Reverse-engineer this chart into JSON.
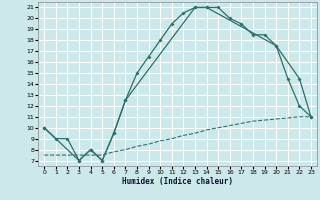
{
  "xlabel": "Humidex (Indice chaleur)",
  "bg_color": "#cce8ea",
  "grid_color": "#b0d8dc",
  "line_color": "#2d7068",
  "xlim": [
    -0.5,
    23.5
  ],
  "ylim": [
    6.5,
    21.5
  ],
  "xticks": [
    0,
    1,
    2,
    3,
    4,
    5,
    6,
    7,
    8,
    9,
    10,
    11,
    12,
    13,
    14,
    15,
    16,
    17,
    18,
    19,
    20,
    21,
    22,
    23
  ],
  "yticks": [
    7,
    8,
    9,
    10,
    11,
    12,
    13,
    14,
    15,
    16,
    17,
    18,
    19,
    20,
    21
  ],
  "line1_x": [
    0,
    1,
    2,
    3,
    4,
    5,
    6,
    7,
    8,
    9,
    10,
    11,
    12,
    13,
    14,
    15,
    16,
    17,
    18,
    19,
    20,
    21,
    22,
    23
  ],
  "line1_y": [
    10,
    9,
    9,
    7,
    8,
    7,
    9.5,
    12.5,
    15,
    16.5,
    18,
    19.5,
    20.5,
    21,
    21,
    21,
    20,
    19.5,
    18.5,
    18.5,
    17.5,
    14.5,
    12,
    11
  ],
  "line2_x": [
    0,
    3,
    4,
    5,
    6,
    7,
    13,
    14,
    20,
    22,
    23
  ],
  "line2_y": [
    10,
    7,
    8,
    7,
    9.5,
    12.5,
    21,
    21,
    17.5,
    14.5,
    11
  ],
  "line3_x": [
    0,
    1,
    2,
    3,
    4,
    5,
    6,
    7,
    8,
    9,
    10,
    11,
    12,
    13,
    14,
    15,
    16,
    17,
    18,
    19,
    20,
    21,
    22,
    23
  ],
  "line3_y": [
    7.5,
    7.5,
    7.5,
    7.5,
    7.5,
    7.5,
    7.8,
    8.0,
    8.3,
    8.5,
    8.8,
    9.0,
    9.3,
    9.5,
    9.8,
    10.0,
    10.2,
    10.4,
    10.6,
    10.7,
    10.8,
    10.9,
    11.0,
    11.0
  ]
}
